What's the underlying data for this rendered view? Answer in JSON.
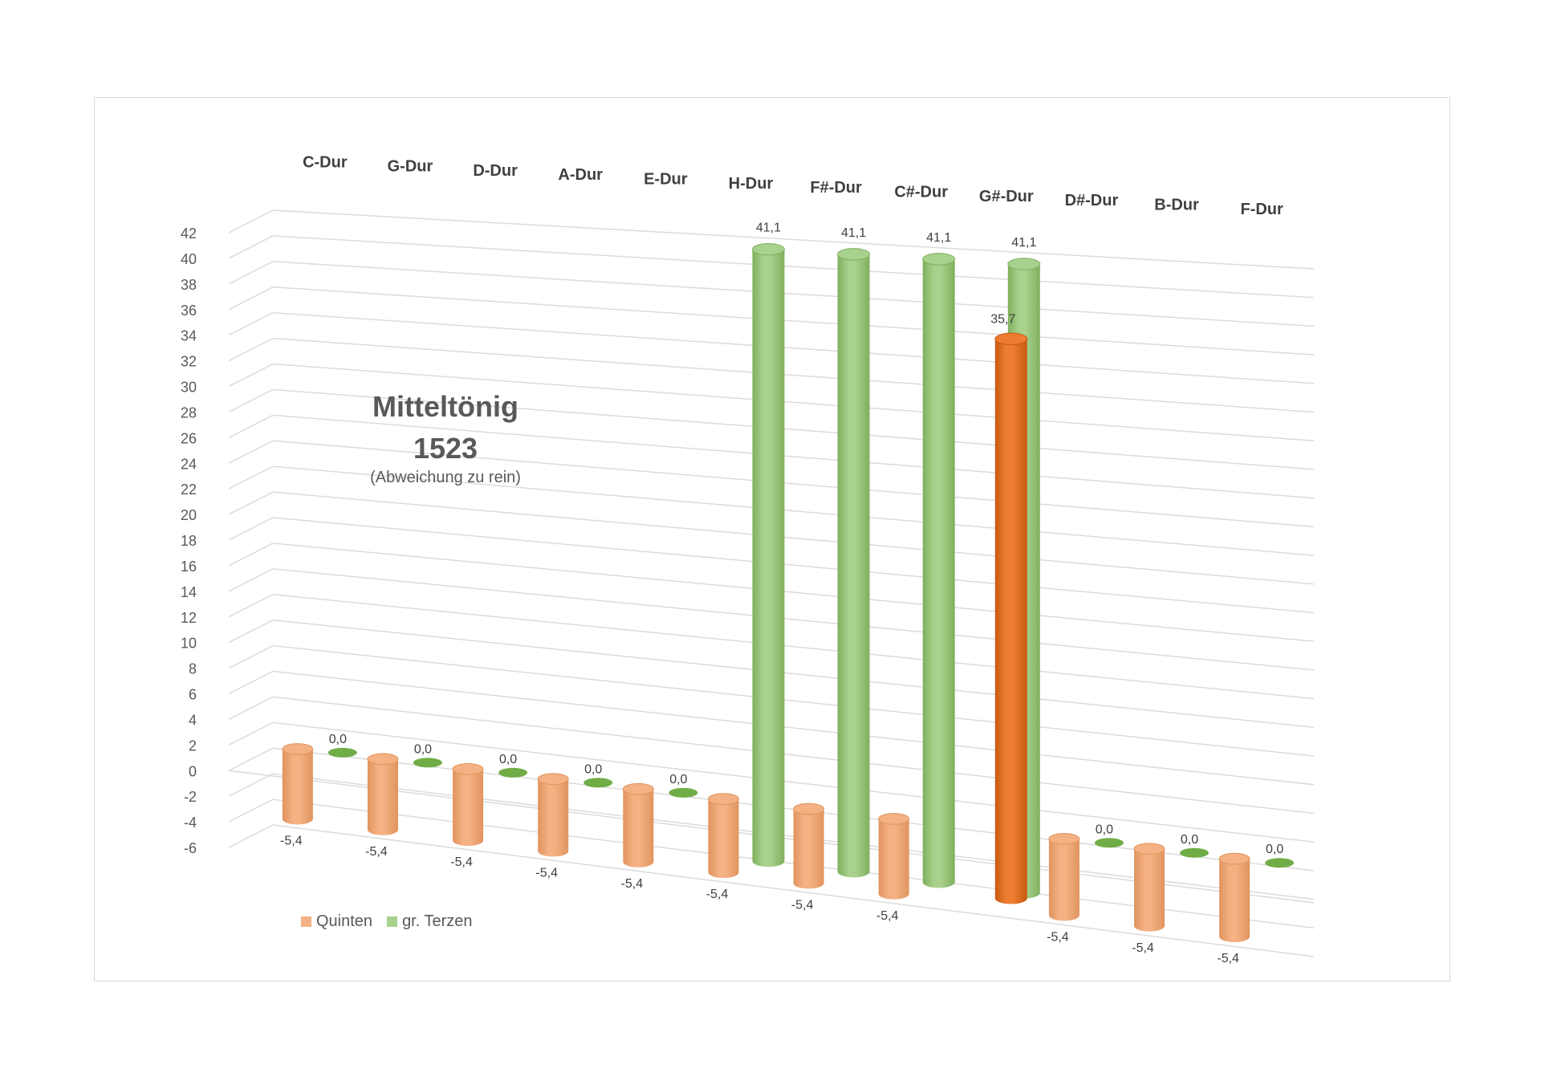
{
  "chart_data": {
    "type": "bar",
    "title": "Mitteltönig\n1523",
    "title_lines": [
      "Mitteltönig",
      "1523"
    ],
    "subtitle": "(Abweichung zu rein)",
    "categories": [
      "C-Dur",
      "G-Dur",
      "D-Dur",
      "A-Dur",
      "E-Dur",
      "H-Dur",
      "F#-Dur",
      "C#-Dur",
      "G#-Dur",
      "D#-Dur",
      "B-Dur",
      "F-Dur"
    ],
    "series": [
      {
        "name": "Quinten",
        "color": "#f4b183",
        "values": [
          -5.4,
          -5.4,
          -5.4,
          -5.4,
          -5.4,
          -5.4,
          -5.4,
          -5.4,
          35.7,
          -5.4,
          -5.4,
          -5.4
        ],
        "labels": [
          "-5,4",
          "-5,4",
          "-5,4",
          "-5,4",
          "-5,4",
          "-5,4",
          "-5,4",
          "-5,4",
          "35,7",
          "-5,4",
          "-5,4",
          "-5,4"
        ]
      },
      {
        "name": "gr. Terzen",
        "color": "#a9d18e",
        "values": [
          0.0,
          0.0,
          0.0,
          0.0,
          0.0,
          41.1,
          41.1,
          41.1,
          41.1,
          0.0,
          0.0,
          0.0
        ],
        "labels": [
          "0,0",
          "0,0",
          "0,0",
          "0,0",
          "0,0",
          "41,1",
          "41,1",
          "41,1",
          "41,1",
          "0,0",
          "0,0",
          "0,0"
        ]
      }
    ],
    "highlight_color": "#ed7d31",
    "ylim": [
      -6,
      42
    ],
    "yticks": [
      "42",
      "40",
      "38",
      "36",
      "34",
      "32",
      "30",
      "28",
      "26",
      "24",
      "22",
      "20",
      "18",
      "16",
      "14",
      "12",
      "10",
      "8",
      "6",
      "4",
      "2",
      "0",
      "-2",
      "-4",
      "-6"
    ],
    "grid": true,
    "legend_position": "bottom-left",
    "style": "3d-cylinder"
  }
}
